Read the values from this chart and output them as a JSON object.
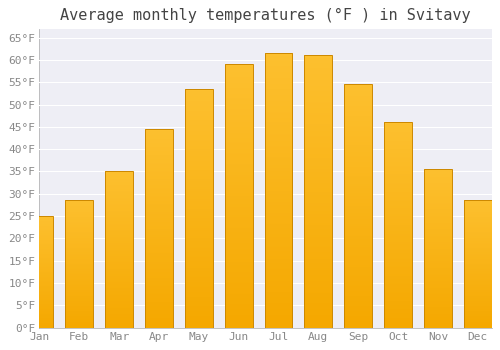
{
  "title": "Average monthly temperatures (°F ) in Svitavy",
  "months": [
    "Jan",
    "Feb",
    "Mar",
    "Apr",
    "May",
    "Jun",
    "Jul",
    "Aug",
    "Sep",
    "Oct",
    "Nov",
    "Dec"
  ],
  "values": [
    25,
    28.5,
    35,
    44.5,
    53.5,
    59,
    61.5,
    61,
    54.5,
    46,
    35.5,
    28.5
  ],
  "bar_color_top": "#FDC02F",
  "bar_color_bottom": "#F5A800",
  "bar_edge_color": "#CC8800",
  "ylim": [
    0,
    67
  ],
  "yticks": [
    0,
    5,
    10,
    15,
    20,
    25,
    30,
    35,
    40,
    45,
    50,
    55,
    60,
    65
  ],
  "ytick_labels": [
    "0°F",
    "5°F",
    "10°F",
    "15°F",
    "20°F",
    "25°F",
    "30°F",
    "35°F",
    "40°F",
    "45°F",
    "50°F",
    "55°F",
    "60°F",
    "65°F"
  ],
  "background_color": "#FFFFFF",
  "plot_bg_color": "#EEEEF5",
  "grid_color": "#FFFFFF",
  "title_fontsize": 11,
  "tick_fontsize": 8,
  "tick_color": "#888888",
  "bar_width": 0.7
}
